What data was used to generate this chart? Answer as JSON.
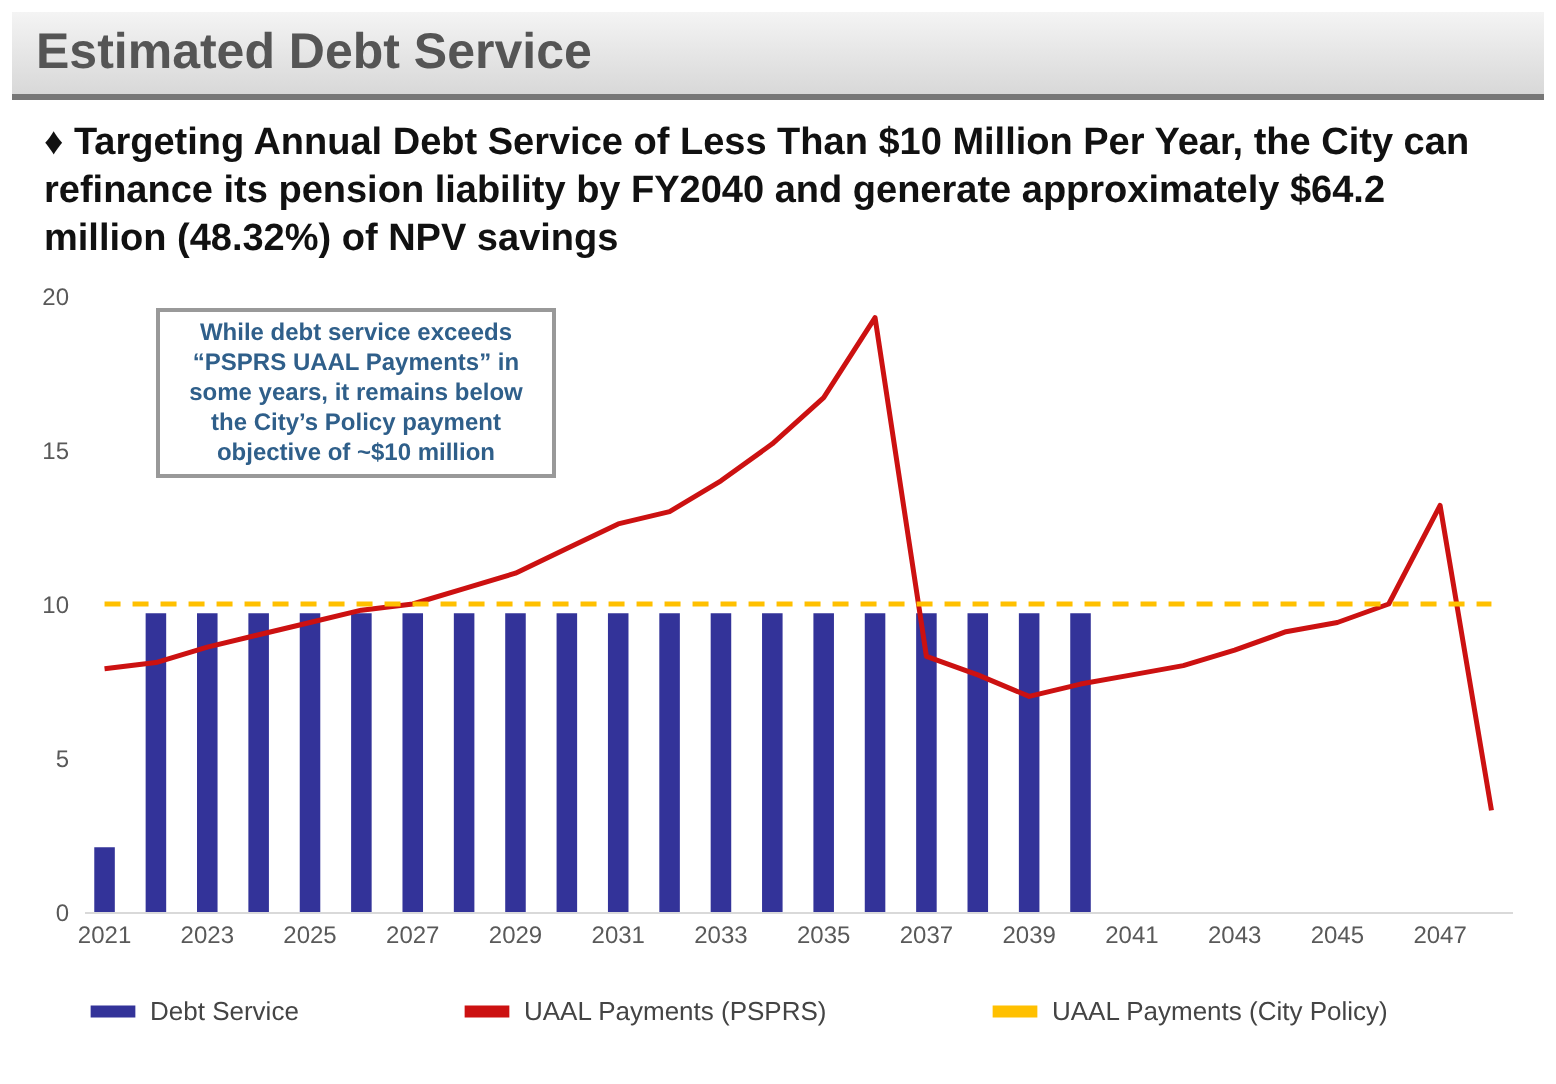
{
  "chart_data": {
    "type": "bar",
    "title": "Estimated Debt Service",
    "subtitle": "♦ Targeting Annual Debt Service of Less Than $10 Million Per Year, the City can refinance its pension liability by FY2040 and generate approximately $64.2 million (48.32%) of NPV savings",
    "annotations": [
      "While debt service exceeds “PSPRS UAAL Payments” in some years, it remains below the City’s Policy payment objective of ~$10 million"
    ],
    "categories": [
      "2021",
      null,
      "2023",
      null,
      "2025",
      null,
      "2027",
      null,
      "2029",
      null,
      "2031",
      null,
      "2033",
      null,
      "2035",
      null,
      "2037",
      null,
      "2039",
      null,
      "2041",
      null,
      "2043",
      null,
      "2045",
      null,
      "2047",
      null
    ],
    "series": [
      {
        "name": "Debt Service",
        "color": "#333399",
        "values": [
          2.1,
          9.7,
          9.7,
          9.7,
          9.7,
          9.7,
          9.7,
          9.7,
          9.7,
          9.7,
          9.7,
          9.7,
          9.7,
          9.7,
          9.7,
          9.7,
          9.7,
          9.7,
          9.7,
          9.7,
          null,
          null,
          null,
          null,
          null,
          null,
          null,
          null
        ]
      },
      {
        "name": "UAAL Payments (PSPRS)",
        "type": "line",
        "line_style": "solid",
        "color": "#cc1111",
        "values": [
          7.9,
          8.1,
          8.6,
          9.0,
          9.4,
          9.8,
          10.0,
          10.5,
          11.0,
          11.8,
          12.6,
          13.0,
          14.0,
          15.2,
          16.7,
          19.3,
          8.3,
          7.7,
          7.0,
          7.4,
          7.7,
          8.0,
          8.5,
          9.1,
          9.4,
          10.0,
          13.2,
          3.3
        ]
      },
      {
        "name": "UAAL Payments (City Policy)",
        "type": "line",
        "line_style": "dashed",
        "color": "#ffc000",
        "values": [
          10,
          10,
          10,
          10,
          10,
          10,
          10,
          10,
          10,
          10,
          10,
          10,
          10,
          10,
          10,
          10,
          10,
          10,
          10,
          10,
          10,
          10,
          10,
          10,
          10,
          10,
          10,
          10
        ]
      }
    ],
    "ylim": [
      0,
      20
    ],
    "yticks": [
      0,
      5,
      10,
      15,
      20
    ],
    "legend": "bottom"
  }
}
